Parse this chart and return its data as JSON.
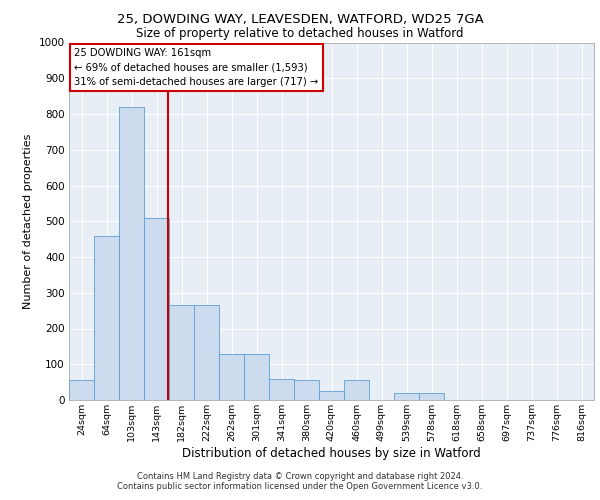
{
  "title_line1": "25, DOWDING WAY, LEAVESDEN, WATFORD, WD25 7GA",
  "title_line2": "Size of property relative to detached houses in Watford",
  "xlabel": "Distribution of detached houses by size in Watford",
  "ylabel": "Number of detached properties",
  "footer_line1": "Contains HM Land Registry data © Crown copyright and database right 2024.",
  "footer_line2": "Contains public sector information licensed under the Open Government Licence v3.0.",
  "annotation_line1": "25 DOWDING WAY: 161sqm",
  "annotation_line2": "← 69% of detached houses are smaller (1,593)",
  "annotation_line3": "31% of semi-detached houses are larger (717) →",
  "bar_color": "#ccdcee",
  "bar_edge_color": "#5a9fd4",
  "vline_color": "#cc0000",
  "annotation_box_edgecolor": "#cc0000",
  "background_color": "#e8eef5",
  "grid_color": "#ffffff",
  "categories": [
    "24sqm",
    "64sqm",
    "103sqm",
    "143sqm",
    "182sqm",
    "222sqm",
    "262sqm",
    "301sqm",
    "341sqm",
    "380sqm",
    "420sqm",
    "460sqm",
    "499sqm",
    "539sqm",
    "578sqm",
    "618sqm",
    "658sqm",
    "697sqm",
    "737sqm",
    "776sqm",
    "816sqm"
  ],
  "values": [
    55,
    460,
    820,
    510,
    265,
    265,
    130,
    130,
    60,
    55,
    25,
    55,
    0,
    20,
    20,
    0,
    0,
    0,
    0,
    0,
    0
  ],
  "ylim": [
    0,
    1000
  ],
  "yticks": [
    0,
    100,
    200,
    300,
    400,
    500,
    600,
    700,
    800,
    900,
    1000
  ],
  "fig_width": 6.0,
  "fig_height": 5.0,
  "dpi": 100
}
